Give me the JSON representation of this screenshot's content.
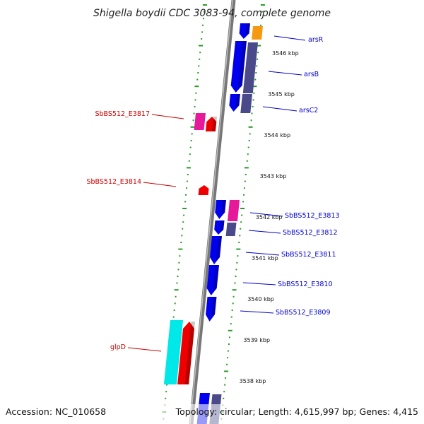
{
  "title": "Shigella boydii CDC 3083-94, complete genome",
  "accession": "Accession: NC_010658",
  "footer_info": "Topology: circular; Length: 4,615,997 bp; Genes: 4,415",
  "colors": {
    "backbone": "#8a8a8a",
    "ring_tick": "#2a9a2a",
    "forward_label": "#0000cc",
    "reverse_label": "#cc0000",
    "gene_blue": "#0000ee",
    "gene_slate": "#4a4a8a",
    "gene_magenta": "#e6199a",
    "gene_red": "#ee0000",
    "gene_orange": "#f59a10",
    "gene_cyan": "#00e8e8"
  },
  "kbp_ticks": [
    {
      "kbp": 3546,
      "label": "3546 kbp"
    },
    {
      "kbp": 3545,
      "label": "3545 kbp"
    },
    {
      "kbp": 3544,
      "label": "3544 kbp"
    },
    {
      "kbp": 3543,
      "label": "3543 kbp"
    },
    {
      "kbp": 3542,
      "label": "3542 kbp"
    },
    {
      "kbp": 3541,
      "label": "3541 kbp"
    },
    {
      "kbp": 3540,
      "label": "3540 kbp"
    },
    {
      "kbp": 3539,
      "label": "3539 kbp"
    },
    {
      "kbp": 3538,
      "label": "3538 kbp"
    }
  ],
  "gene_labels": [
    {
      "id": "arsR",
      "text": "arsR",
      "strand": "forward"
    },
    {
      "id": "arsB",
      "text": "arsB",
      "strand": "forward"
    },
    {
      "id": "arsC2",
      "text": "arsC2",
      "strand": "forward"
    },
    {
      "id": "E3813",
      "text": "SbBS512_E3813",
      "strand": "forward"
    },
    {
      "id": "E3812",
      "text": "SbBS512_E3812",
      "strand": "forward"
    },
    {
      "id": "E3811",
      "text": "SbBS512_E3811",
      "strand": "forward"
    },
    {
      "id": "E3810",
      "text": "SbBS512_E3810",
      "strand": "forward"
    },
    {
      "id": "E3809",
      "text": "SbBS512_E3809",
      "strand": "forward"
    },
    {
      "id": "E3817",
      "text": "SbBS512_E3817",
      "strand": "reverse"
    },
    {
      "id": "E3814",
      "text": "SbBS512_E3814",
      "strand": "reverse"
    },
    {
      "id": "glpD",
      "text": "glpD",
      "strand": "reverse"
    }
  ]
}
